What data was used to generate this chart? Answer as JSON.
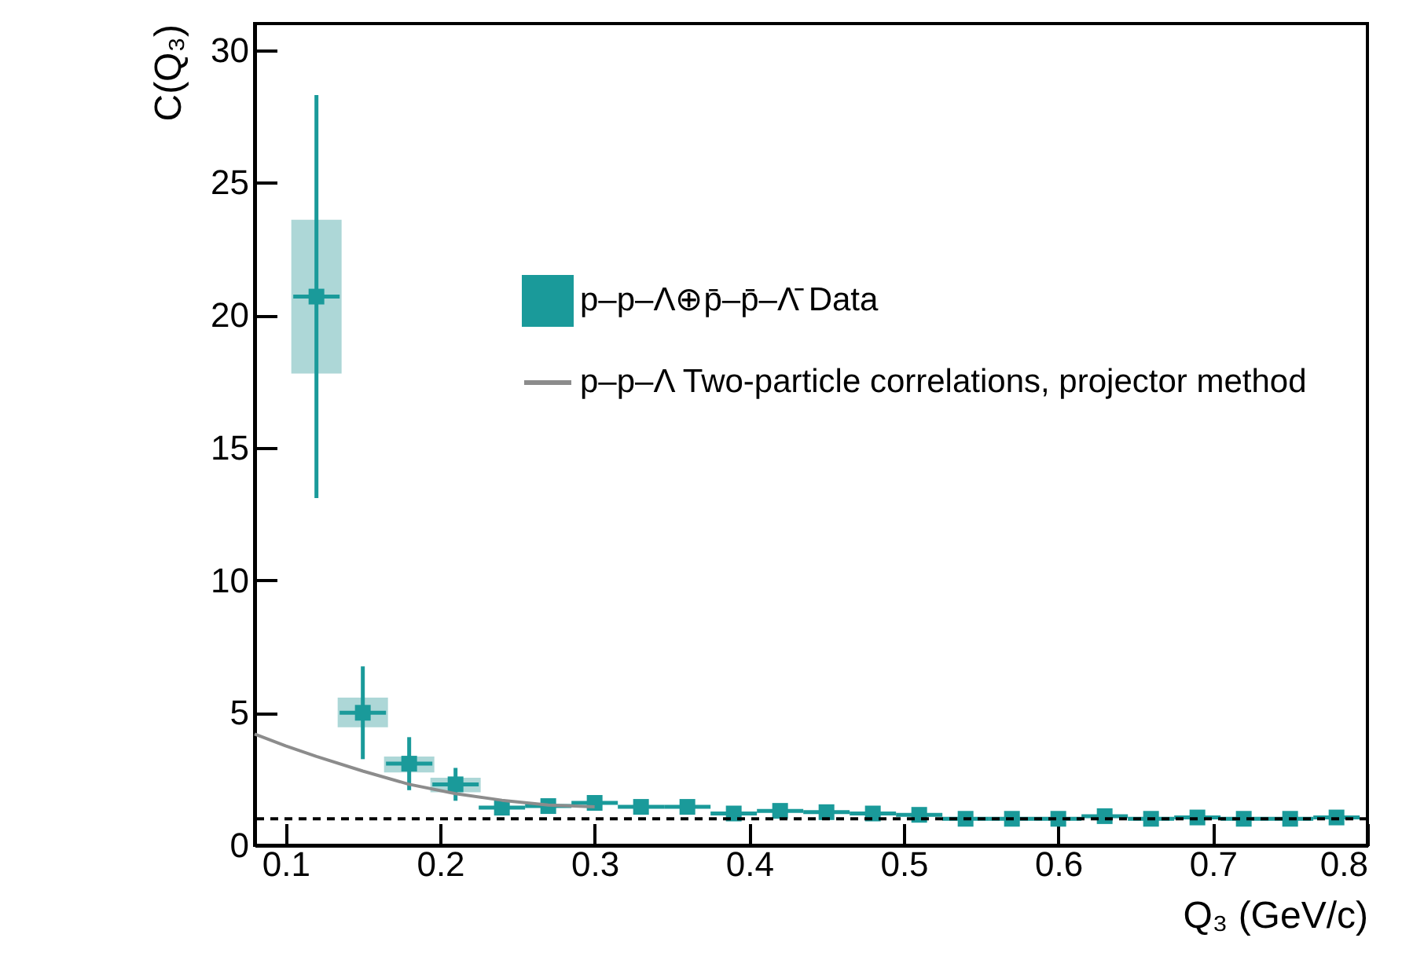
{
  "chart_data": {
    "type": "scatter",
    "xlabel": "Q₃ (GeV/c)",
    "ylabel": "C(Q₃)",
    "xlim": [
      0.08,
      0.8
    ],
    "ylim": [
      0,
      31
    ],
    "xticks": [
      0.1,
      0.2,
      0.3,
      0.4,
      0.5,
      0.6,
      0.7,
      0.8
    ],
    "yticks": [
      0,
      5,
      10,
      15,
      20,
      25,
      30
    ],
    "legend": "right",
    "series": [
      {
        "type": "bar",
        "color": "#9fd0d0",
        "x": [
          0.12,
          0.15,
          0.18,
          0.21
        ],
        "base": [
          17.8,
          4.45,
          2.75,
          2.0
        ],
        "values": [
          5.8,
          1.12,
          0.6,
          0.55
        ]
      },
      {
        "marker": "square",
        "name": "p–p–Λ⊕p̄–p̄–Λ̄ Data",
        "color": "#1a9a9a",
        "x": [
          0.12,
          0.15,
          0.18,
          0.21,
          0.24,
          0.27,
          0.3,
          0.33,
          0.36,
          0.39,
          0.42,
          0.45,
          0.48,
          0.51,
          0.54,
          0.57,
          0.6,
          0.63,
          0.66,
          0.69,
          0.72,
          0.75,
          0.78
        ],
        "values": [
          20.7,
          5.0,
          3.08,
          2.3,
          1.42,
          1.48,
          1.6,
          1.45,
          1.45,
          1.2,
          1.3,
          1.25,
          1.2,
          1.15,
          1.0,
          1.0,
          1.0,
          1.1,
          1.0,
          1.05,
          1.0,
          1.0,
          1.05
        ],
        "errors": [
          7.6,
          1.75,
          1.0,
          0.62,
          null,
          null,
          null,
          null,
          null,
          null,
          null,
          null,
          null,
          null,
          null,
          null,
          null,
          null,
          null,
          null,
          null,
          null,
          null
        ],
        "xerrors": [
          0.015,
          0.015,
          0.015,
          0.015,
          0.015,
          0.015,
          0.015,
          0.015,
          0.015,
          0.015,
          0.015,
          0.015,
          0.015,
          0.015,
          0.015,
          0.015,
          0.015,
          0.015,
          0.015,
          0.015,
          0.015,
          0.015,
          0.015
        ]
      },
      {
        "type": "line",
        "name": "p–p–Λ  Two-particle correlations, projector method",
        "color": "#8c8c8c",
        "x": [
          0.08,
          0.1,
          0.12,
          0.15,
          0.18,
          0.21,
          0.24,
          0.27,
          0.3
        ],
        "values": [
          4.2,
          3.75,
          3.35,
          2.8,
          2.3,
          1.95,
          1.7,
          1.52,
          1.45
        ]
      }
    ],
    "ref_lines": [
      {
        "axis": "y",
        "value": 1,
        "line_style": "dashed",
        "color": "#000000"
      }
    ]
  }
}
